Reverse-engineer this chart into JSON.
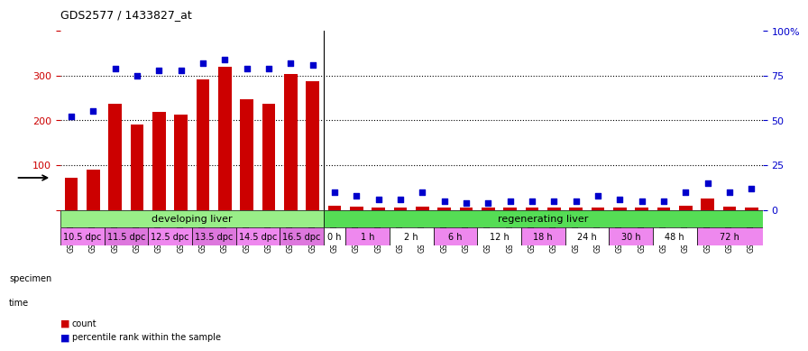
{
  "title": "GDS2577 / 1433827_at",
  "samples": [
    "GSM161128",
    "GSM161129",
    "GSM161130",
    "GSM161131",
    "GSM161132",
    "GSM161133",
    "GSM161134",
    "GSM161135",
    "GSM161136",
    "GSM161137",
    "GSM161138",
    "GSM161139",
    "GSM161108",
    "GSM161109",
    "GSM161110",
    "GSM161111",
    "GSM161112",
    "GSM161113",
    "GSM161114",
    "GSM161115",
    "GSM161116",
    "GSM161117",
    "GSM161118",
    "GSM161119",
    "GSM161120",
    "GSM161121",
    "GSM161122",
    "GSM161123",
    "GSM161124",
    "GSM161125",
    "GSM161126",
    "GSM161127"
  ],
  "counts": [
    72,
    90,
    237,
    190,
    218,
    213,
    292,
    320,
    248,
    237,
    303,
    288,
    10,
    8,
    5,
    5,
    8,
    5,
    5,
    5,
    5,
    5,
    5,
    5,
    5,
    5,
    5,
    5,
    10,
    25,
    8,
    5
  ],
  "percentiles": [
    52,
    55,
    79,
    75,
    78,
    78,
    82,
    84,
    79,
    79,
    82,
    81,
    10,
    8,
    6,
    6,
    10,
    5,
    4,
    4,
    5,
    5,
    5,
    5,
    8,
    6,
    5,
    5,
    10,
    15,
    10,
    12
  ],
  "bar_color": "#cc0000",
  "dot_color": "#0000cc",
  "ylim_left": [
    0,
    400
  ],
  "ylim_right": [
    0,
    100
  ],
  "yticks_left": [
    0,
    100,
    200,
    300,
    400
  ],
  "yticks_right": [
    0,
    25,
    50,
    75,
    100
  ],
  "ytick_labels_right": [
    "0",
    "25",
    "50",
    "75",
    "100%"
  ],
  "specimen_groups": [
    {
      "label": "developing liver",
      "start": 0,
      "end": 12,
      "color": "#99ee88"
    },
    {
      "label": "regenerating liver",
      "start": 12,
      "end": 32,
      "color": "#55dd55"
    }
  ],
  "time_groups": [
    {
      "label": "10.5 dpc",
      "start": 0,
      "end": 2,
      "color": "#ee88ee"
    },
    {
      "label": "11.5 dpc",
      "start": 2,
      "end": 4,
      "color": "#dd77dd"
    },
    {
      "label": "12.5 dpc",
      "start": 4,
      "end": 6,
      "color": "#ee88ee"
    },
    {
      "label": "13.5 dpc",
      "start": 6,
      "end": 8,
      "color": "#dd77dd"
    },
    {
      "label": "14.5 dpc",
      "start": 8,
      "end": 10,
      "color": "#ee88ee"
    },
    {
      "label": "16.5 dpc",
      "start": 10,
      "end": 12,
      "color": "#dd77dd"
    },
    {
      "label": "0 h",
      "start": 12,
      "end": 13,
      "color": "#ffffff"
    },
    {
      "label": "1 h",
      "start": 13,
      "end": 15,
      "color": "#ee88ee"
    },
    {
      "label": "2 h",
      "start": 15,
      "end": 17,
      "color": "#ffffff"
    },
    {
      "label": "6 h",
      "start": 17,
      "end": 19,
      "color": "#ee88ee"
    },
    {
      "label": "12 h",
      "start": 19,
      "end": 21,
      "color": "#ffffff"
    },
    {
      "label": "18 h",
      "start": 21,
      "end": 23,
      "color": "#ee88ee"
    },
    {
      "label": "24 h",
      "start": 23,
      "end": 25,
      "color": "#ffffff"
    },
    {
      "label": "30 h",
      "start": 25,
      "end": 27,
      "color": "#ee88ee"
    },
    {
      "label": "48 h",
      "start": 27,
      "end": 29,
      "color": "#ffffff"
    },
    {
      "label": "72 h",
      "start": 29,
      "end": 32,
      "color": "#ee88ee"
    }
  ],
  "legend_count_color": "#cc0000",
  "legend_pct_color": "#0000cc",
  "bg_color": "#ffffff",
  "plot_bg_color": "#ffffff",
  "grid_color": "#000000"
}
